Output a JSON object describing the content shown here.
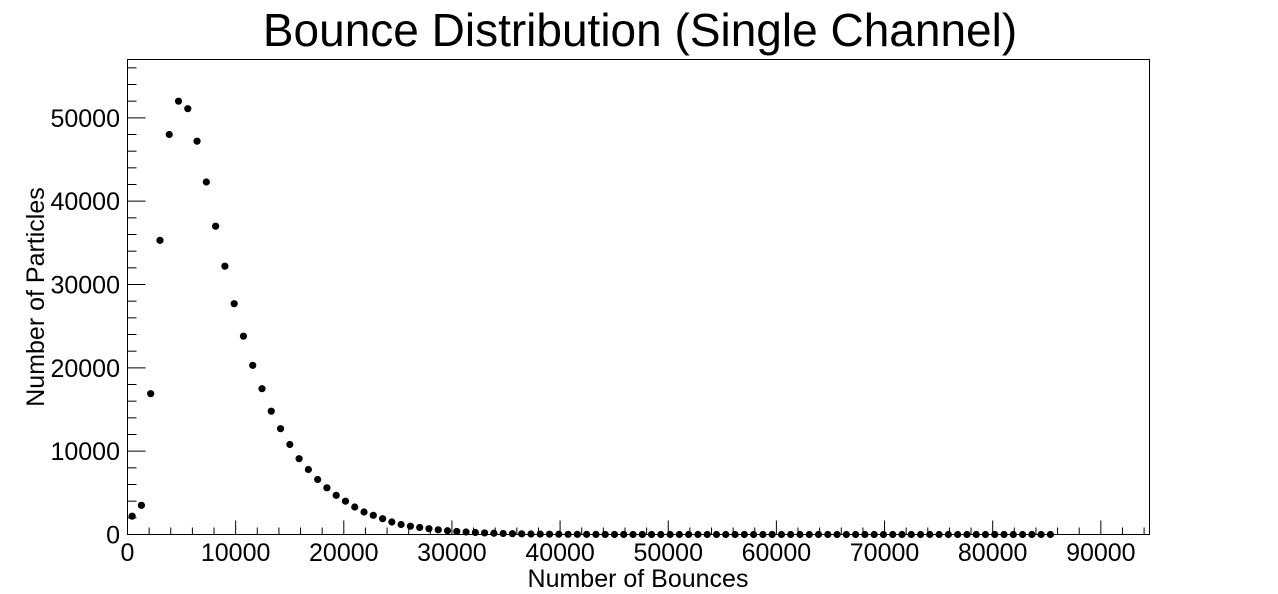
{
  "chart_data": {
    "type": "scatter",
    "title": "Bounce Distribution (Single Channel)",
    "xlabel": "Number of Bounces",
    "ylabel": "Number of Particles",
    "xlim": [
      0,
      94500
    ],
    "ylim": [
      0,
      57000
    ],
    "x_ticks": [
      0,
      10000,
      20000,
      30000,
      40000,
      50000,
      60000,
      70000,
      80000,
      90000
    ],
    "y_ticks": [
      0,
      10000,
      20000,
      30000,
      40000,
      50000
    ],
    "x_tick_labels": [
      "0",
      "10000",
      "20000",
      "30000",
      "40000",
      "50000",
      "60000",
      "70000",
      "80000",
      "90000"
    ],
    "y_tick_labels": [
      "0",
      "10000",
      "20000",
      "30000",
      "40000",
      "50000"
    ],
    "grid": false,
    "marker_color": "#000000",
    "series": [
      {
        "x": [
          429,
          1287,
          2144,
          3002,
          3860,
          4717,
          5575,
          6433,
          7290,
          8148,
          9006,
          9863,
          10721,
          11579,
          12436,
          13294,
          14152,
          15009,
          15867,
          16725,
          17582,
          18440,
          19298,
          20155,
          21013,
          21871,
          22728,
          23586,
          24444,
          25301,
          26159,
          27017,
          27874,
          28732,
          29590,
          30447,
          31305,
          32163,
          33020,
          33878,
          34736,
          35593,
          36451,
          37309,
          38166,
          39024,
          39882,
          40739,
          41597,
          42455,
          43312,
          44170,
          45028,
          45885,
          46743,
          47601,
          48458,
          49316,
          50174,
          51031,
          51889,
          52747,
          53604,
          54462,
          55320,
          56177,
          57035,
          57893,
          58750,
          59608,
          60466,
          61323,
          62181,
          63039,
          63896,
          64754,
          65612,
          66469,
          67327,
          68185,
          69042,
          69900,
          70758,
          71615,
          72473,
          73331,
          74188,
          75046,
          75904,
          76761,
          77619,
          78477,
          79334,
          80192,
          81050,
          81907,
          82765,
          83623,
          84480,
          85338
        ],
        "y": [
          2200,
          3500,
          16900,
          35300,
          48000,
          52000,
          51100,
          47200,
          42300,
          37000,
          32200,
          27700,
          23800,
          20300,
          17500,
          14800,
          12700,
          10800,
          9100,
          7800,
          6600,
          5600,
          4700,
          4000,
          3300,
          2700,
          2300,
          1900,
          1500,
          1200,
          1000,
          850,
          700,
          560,
          450,
          370,
          300,
          240,
          190,
          150,
          120,
          100,
          80,
          60,
          50,
          40,
          30,
          25,
          20,
          15,
          12,
          10,
          8,
          6,
          5,
          4,
          3,
          2,
          2,
          1,
          1,
          1,
          1,
          0,
          0,
          0,
          0,
          0,
          0,
          0,
          0,
          0,
          0,
          0,
          0,
          0,
          0,
          0,
          0,
          0,
          0,
          0,
          0,
          0,
          0,
          0,
          0,
          0,
          0,
          0,
          0,
          0,
          0,
          0,
          0,
          0,
          0,
          0,
          0,
          0
        ]
      }
    ]
  }
}
